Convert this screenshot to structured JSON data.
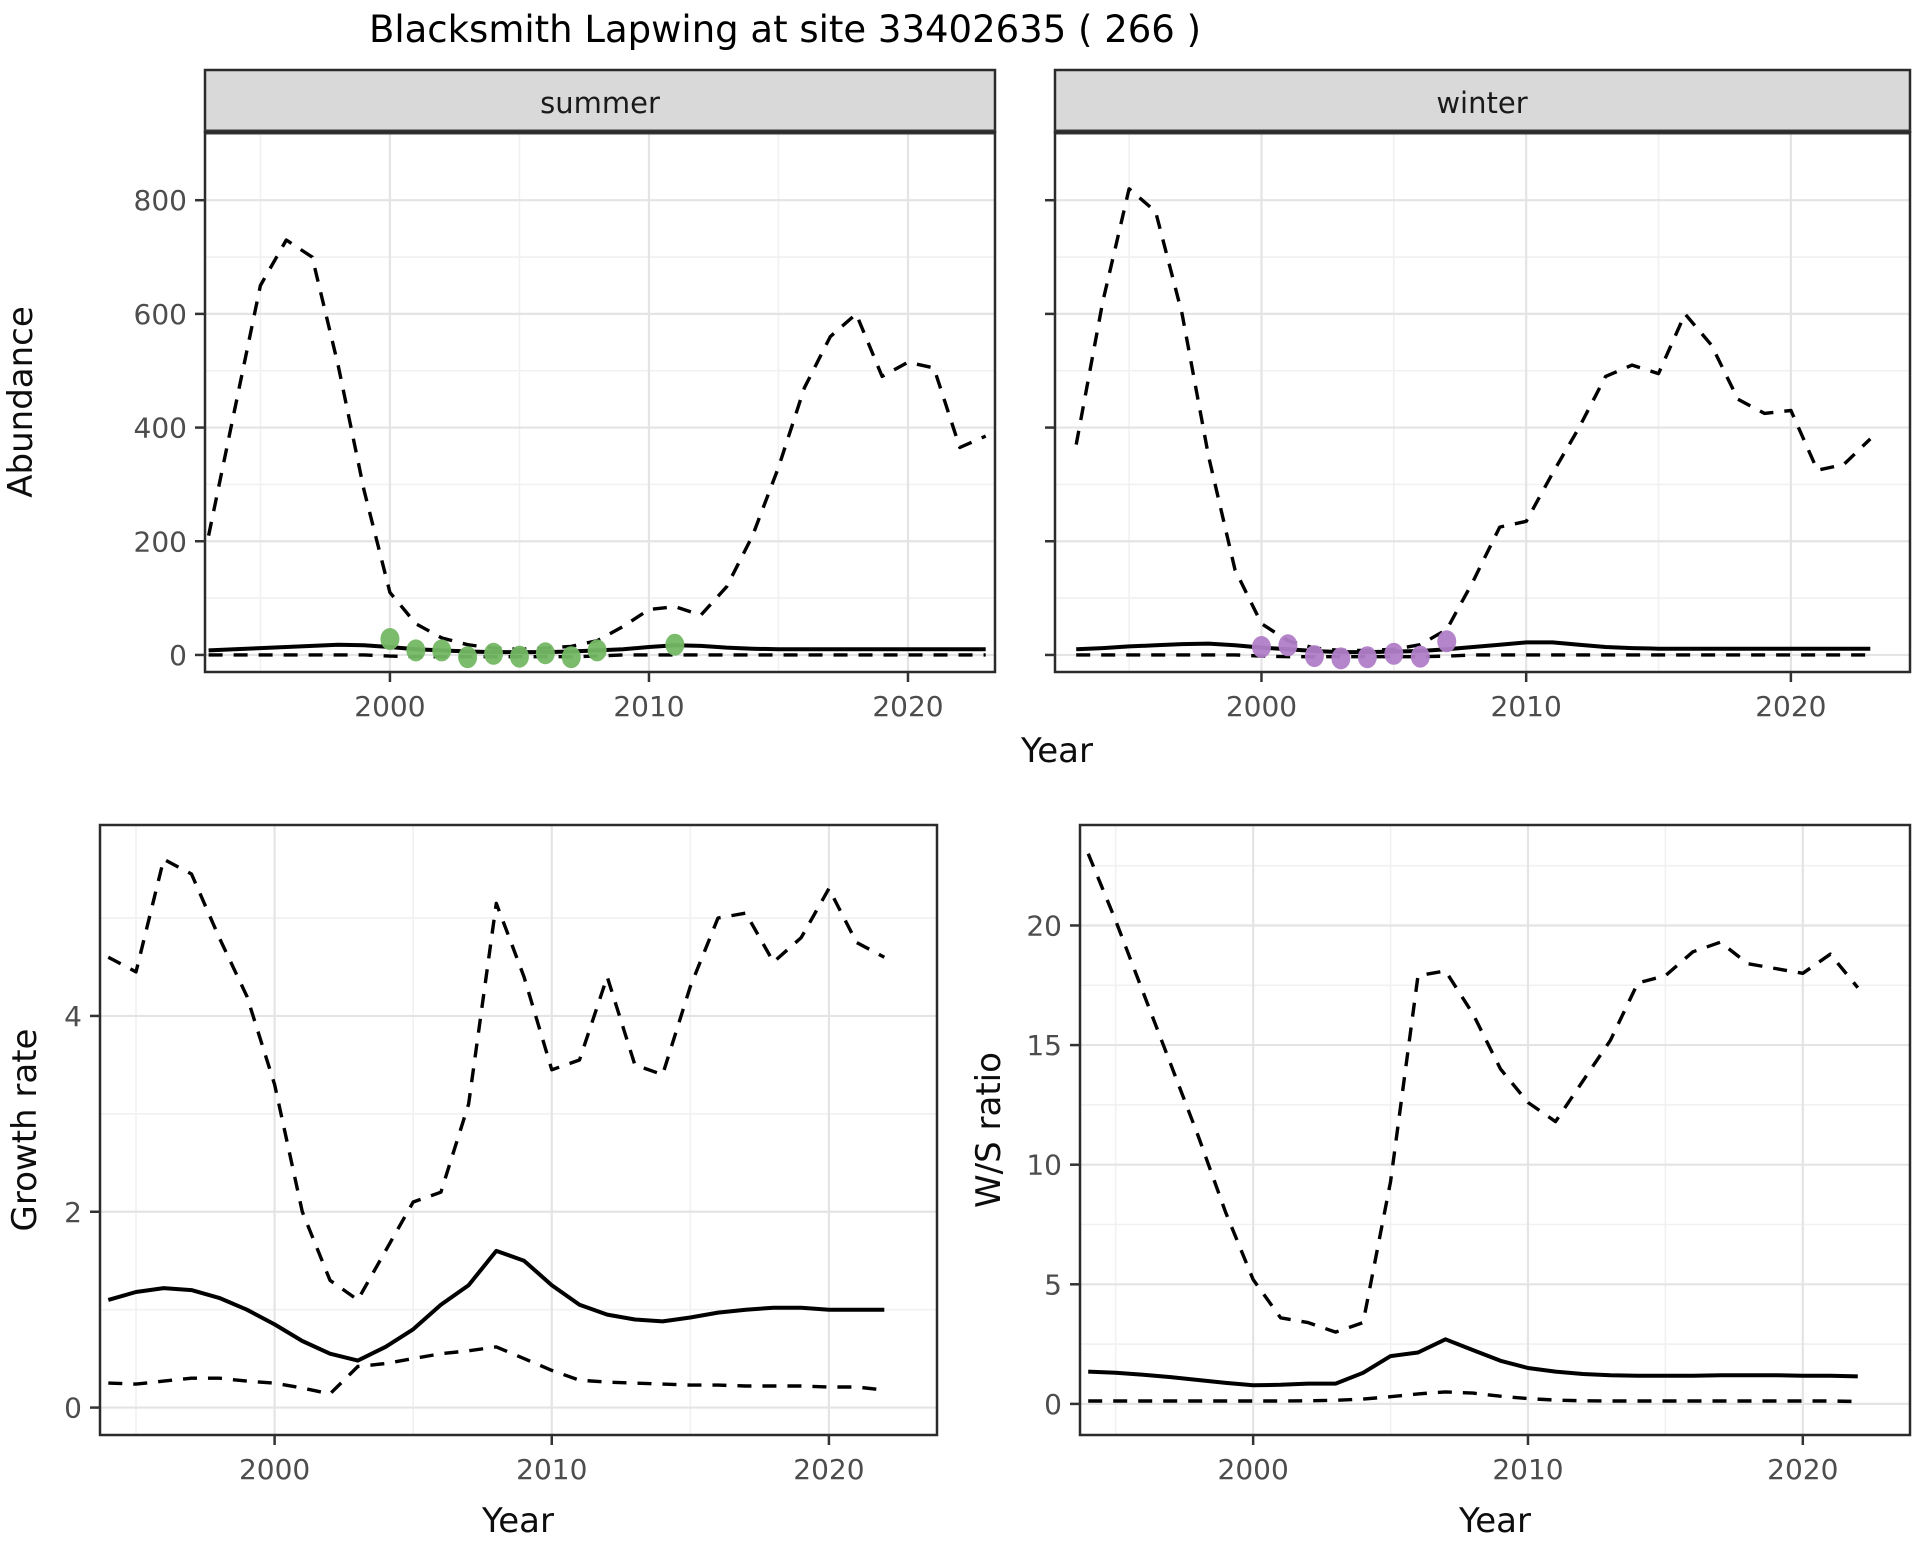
{
  "title": "Blacksmith Lapwing at site 33402635 ( 266 )",
  "colors": {
    "line": "#000000",
    "summer_point": "#74B864",
    "winter_point": "#B07EC7",
    "grid_major": "#E4E4E4",
    "grid_minor": "#F1F1F1",
    "strip_bg": "#D9D9D9",
    "panel_border": "#2B2B2B",
    "tick_mark": "#333333",
    "tick_text": "#4D4D4D"
  },
  "chart_data": [
    {
      "id": "abundance-summer",
      "type": "line",
      "strip": "summer",
      "xlabel": "Year",
      "ylabel": "Abundance",
      "xlim": [
        1992.86,
        2023.36
      ],
      "ylim": [
        -30,
        920
      ],
      "xticks": [
        2000,
        2010,
        2020
      ],
      "yticks": [
        0,
        200,
        400,
        600,
        800
      ],
      "xminor": [
        1995,
        2005,
        2015
      ],
      "yminor": [
        100,
        300,
        500,
        700
      ],
      "show_ytick_labels": true,
      "series": [
        {
          "name": "upper-ci",
          "style": "dashed",
          "x": [
            1993,
            1994,
            1995,
            1996,
            1997,
            1998,
            1999,
            2000,
            2001,
            2002,
            2003,
            2004,
            2005,
            2006,
            2007,
            2008,
            2009,
            2010,
            2011,
            2012,
            2013,
            2014,
            2015,
            2016,
            2017,
            2018,
            2019,
            2020,
            2021,
            2022,
            2023
          ],
          "y": [
            210,
            430,
            650,
            730,
            700,
            510,
            290,
            110,
            55,
            30,
            18,
            12,
            10,
            12,
            15,
            25,
            50,
            80,
            85,
            70,
            120,
            210,
            330,
            470,
            560,
            600,
            490,
            515,
            505,
            365,
            385
          ]
        },
        {
          "name": "mean",
          "style": "solid",
          "x": [
            1993,
            1994,
            1995,
            1996,
            1997,
            1998,
            1999,
            2000,
            2001,
            2002,
            2003,
            2004,
            2005,
            2006,
            2007,
            2008,
            2009,
            2010,
            2011,
            2012,
            2013,
            2014,
            2015,
            2016,
            2017,
            2018,
            2019,
            2020,
            2021,
            2022,
            2023
          ],
          "y": [
            8,
            10,
            12,
            14,
            16,
            18,
            17,
            14,
            10,
            8,
            6,
            5,
            5,
            5,
            6,
            8,
            10,
            14,
            17,
            16,
            13,
            11,
            10,
            10,
            10,
            10,
            10,
            10,
            10,
            10,
            10
          ]
        },
        {
          "name": "lower-ci",
          "style": "dashed",
          "x": [
            1993,
            1994,
            1995,
            1996,
            1997,
            1998,
            1999,
            2000,
            2001,
            2002,
            2003,
            2004,
            2005,
            2006,
            2007,
            2008,
            2009,
            2010,
            2011,
            2012,
            2013,
            2014,
            2015,
            2016,
            2017,
            2018,
            2019,
            2020,
            2021,
            2022,
            2023
          ],
          "y": [
            0,
            0,
            0,
            0,
            0,
            0,
            0,
            -2,
            -3,
            -3,
            -3,
            -3,
            -3,
            -3,
            -3,
            -2,
            0,
            0,
            0,
            0,
            0,
            0,
            0,
            0,
            0,
            0,
            0,
            0,
            0,
            0,
            0
          ]
        },
        {
          "name": "observed-points",
          "style": "points",
          "color_key": "summer_point",
          "x": [
            2000,
            2001,
            2002,
            2003,
            2004,
            2005,
            2006,
            2007,
            2008,
            2011
          ],
          "y": [
            28,
            8,
            8,
            -4,
            2,
            -3,
            3,
            -4,
            8,
            18
          ]
        }
      ]
    },
    {
      "id": "abundance-winter",
      "type": "line",
      "strip": "winter",
      "xlabel": "Year",
      "ylabel": "Abundance",
      "xlim": [
        1992.2,
        2024.5
      ],
      "ylim": [
        -30,
        920
      ],
      "xticks": [
        2000,
        2010,
        2020
      ],
      "yticks": [
        0,
        200,
        400,
        600,
        800
      ],
      "xminor": [
        1995,
        2005,
        2015
      ],
      "yminor": [
        100,
        300,
        500,
        700
      ],
      "show_ytick_labels": false,
      "series": [
        {
          "name": "upper-ci",
          "style": "dashed",
          "x": [
            1993,
            1994,
            1995,
            1996,
            1997,
            1998,
            1999,
            2000,
            2001,
            2002,
            2003,
            2004,
            2005,
            2006,
            2007,
            2008,
            2009,
            2010,
            2011,
            2012,
            2013,
            2014,
            2015,
            2016,
            2017,
            2018,
            2019,
            2020,
            2021,
            2022,
            2023
          ],
          "y": [
            370,
            620,
            820,
            780,
            600,
            350,
            150,
            55,
            25,
            12,
            8,
            8,
            10,
            18,
            45,
            130,
            225,
            235,
            320,
            400,
            490,
            510,
            495,
            600,
            545,
            450,
            425,
            430,
            325,
            335,
            380
          ]
        },
        {
          "name": "mean",
          "style": "solid",
          "x": [
            1993,
            1994,
            1995,
            1996,
            1997,
            1998,
            1999,
            2000,
            2001,
            2002,
            2003,
            2004,
            2005,
            2006,
            2007,
            2008,
            2009,
            2010,
            2011,
            2012,
            2013,
            2014,
            2015,
            2016,
            2017,
            2018,
            2019,
            2020,
            2021,
            2022,
            2023
          ],
          "y": [
            10,
            12,
            15,
            17,
            19,
            20,
            17,
            13,
            10,
            7,
            5,
            5,
            6,
            7,
            10,
            14,
            18,
            22,
            22,
            18,
            14,
            12,
            11,
            11,
            11,
            11,
            11,
            11,
            11,
            11,
            11
          ]
        },
        {
          "name": "lower-ci",
          "style": "dashed",
          "x": [
            1993,
            1994,
            1995,
            1996,
            1997,
            1998,
            1999,
            2000,
            2001,
            2002,
            2003,
            2004,
            2005,
            2006,
            2007,
            2008,
            2009,
            2010,
            2011,
            2012,
            2013,
            2014,
            2015,
            2016,
            2017,
            2018,
            2019,
            2020,
            2021,
            2022,
            2023
          ],
          "y": [
            0,
            0,
            0,
            0,
            0,
            0,
            0,
            -2,
            -3,
            -3,
            -3,
            -3,
            -3,
            -3,
            -2,
            0,
            0,
            0,
            0,
            0,
            0,
            0,
            0,
            0,
            0,
            0,
            0,
            0,
            0,
            0,
            0
          ]
        },
        {
          "name": "observed-points",
          "style": "points",
          "color_key": "winter_point",
          "x": [
            2000,
            2001,
            2002,
            2003,
            2004,
            2005,
            2006,
            2007
          ],
          "y": [
            14,
            17,
            -2,
            -6,
            -4,
            2,
            -3,
            24
          ]
        }
      ]
    },
    {
      "id": "growth-rate",
      "type": "line",
      "strip": null,
      "xlabel": "Year",
      "ylabel": "Growth rate",
      "xlim": [
        1993.7,
        2023.9
      ],
      "ylim": [
        -0.28,
        5.95
      ],
      "xticks": [
        2000,
        2010,
        2020
      ],
      "yticks": [
        0,
        2,
        4
      ],
      "xminor": [
        1995,
        2005,
        2015
      ],
      "yminor": [
        1,
        3,
        5
      ],
      "show_ytick_labels": true,
      "series": [
        {
          "name": "upper-ci",
          "style": "dashed",
          "x": [
            1994,
            1995,
            1996,
            1997,
            1998,
            1999,
            2000,
            2001,
            2002,
            2003,
            2004,
            2005,
            2006,
            2007,
            2008,
            2009,
            2010,
            2011,
            2012,
            2013,
            2014,
            2015,
            2016,
            2017,
            2018,
            2019,
            2020,
            2021,
            2022
          ],
          "y": [
            4.6,
            4.45,
            5.6,
            5.45,
            4.8,
            4.2,
            3.3,
            2.0,
            1.3,
            1.1,
            1.6,
            2.1,
            2.2,
            3.1,
            5.15,
            4.4,
            3.45,
            3.55,
            4.4,
            3.5,
            3.4,
            4.3,
            5.0,
            5.05,
            4.55,
            4.8,
            5.3,
            4.75,
            4.6
          ]
        },
        {
          "name": "mean",
          "style": "solid",
          "x": [
            1994,
            1995,
            1996,
            1997,
            1998,
            1999,
            2000,
            2001,
            2002,
            2003,
            2004,
            2005,
            2006,
            2007,
            2008,
            2009,
            2010,
            2011,
            2012,
            2013,
            2014,
            2015,
            2016,
            2017,
            2018,
            2019,
            2020,
            2021,
            2022
          ],
          "y": [
            1.1,
            1.18,
            1.22,
            1.2,
            1.12,
            1.0,
            0.85,
            0.68,
            0.55,
            0.48,
            0.62,
            0.8,
            1.05,
            1.25,
            1.6,
            1.5,
            1.25,
            1.05,
            0.95,
            0.9,
            0.88,
            0.92,
            0.97,
            1.0,
            1.02,
            1.02,
            1.0,
            1.0,
            1.0
          ]
        },
        {
          "name": "lower-ci",
          "style": "dashed",
          "x": [
            1994,
            1995,
            1996,
            1997,
            1998,
            1999,
            2000,
            2001,
            2002,
            2003,
            2004,
            2005,
            2006,
            2007,
            2008,
            2009,
            2010,
            2011,
            2012,
            2013,
            2014,
            2015,
            2016,
            2017,
            2018,
            2019,
            2020,
            2021,
            2022
          ],
          "y": [
            0.25,
            0.24,
            0.27,
            0.3,
            0.3,
            0.27,
            0.25,
            0.2,
            0.14,
            0.42,
            0.45,
            0.5,
            0.55,
            0.58,
            0.62,
            0.5,
            0.38,
            0.28,
            0.26,
            0.25,
            0.24,
            0.23,
            0.23,
            0.22,
            0.22,
            0.22,
            0.21,
            0.21,
            0.18
          ]
        }
      ]
    },
    {
      "id": "ws-ratio",
      "type": "line",
      "strip": null,
      "xlabel": "Year",
      "ylabel": "W/S ratio",
      "xlim": [
        1993.7,
        2023.9
      ],
      "ylim": [
        -1.3,
        24.2
      ],
      "xticks": [
        2000,
        2010,
        2020
      ],
      "yticks": [
        0,
        5,
        10,
        15,
        20
      ],
      "xminor": [
        1995,
        2005,
        2015
      ],
      "yminor": [
        2.5,
        7.5,
        12.5,
        17.5,
        22.5
      ],
      "show_ytick_labels": true,
      "series": [
        {
          "name": "upper-ci",
          "style": "dashed",
          "x": [
            1994,
            1995,
            1996,
            1997,
            1998,
            1999,
            2000,
            2001,
            2002,
            2003,
            2004,
            2005,
            2006,
            2007,
            2008,
            2009,
            2010,
            2011,
            2012,
            2013,
            2014,
            2015,
            2016,
            2017,
            2018,
            2019,
            2020,
            2021,
            2022
          ],
          "y": [
            23.0,
            20.2,
            17.2,
            14.2,
            11.2,
            8.0,
            5.2,
            3.6,
            3.4,
            3.0,
            3.4,
            9.3,
            17.9,
            18.1,
            16.3,
            14.0,
            12.6,
            11.8,
            13.5,
            15.2,
            17.6,
            17.9,
            18.9,
            19.3,
            18.4,
            18.2,
            18.0,
            18.8,
            17.4
          ]
        },
        {
          "name": "mean",
          "style": "solid",
          "x": [
            1994,
            1995,
            1996,
            1997,
            1998,
            1999,
            2000,
            2001,
            2002,
            2003,
            2004,
            2005,
            2006,
            2007,
            2008,
            2009,
            2010,
            2011,
            2012,
            2013,
            2014,
            2015,
            2016,
            2017,
            2018,
            2019,
            2020,
            2021,
            2022
          ],
          "y": [
            1.35,
            1.3,
            1.22,
            1.12,
            1.0,
            0.88,
            0.78,
            0.8,
            0.85,
            0.85,
            1.3,
            2.0,
            2.15,
            2.7,
            2.25,
            1.8,
            1.5,
            1.35,
            1.25,
            1.2,
            1.18,
            1.18,
            1.18,
            1.2,
            1.2,
            1.2,
            1.18,
            1.18,
            1.15
          ]
        },
        {
          "name": "lower-ci",
          "style": "dashed",
          "x": [
            1994,
            1995,
            1996,
            1997,
            1998,
            1999,
            2000,
            2001,
            2002,
            2003,
            2004,
            2005,
            2006,
            2007,
            2008,
            2009,
            2010,
            2011,
            2012,
            2013,
            2014,
            2015,
            2016,
            2017,
            2018,
            2019,
            2020,
            2021,
            2022
          ],
          "y": [
            0.12,
            0.12,
            0.12,
            0.12,
            0.12,
            0.12,
            0.12,
            0.12,
            0.13,
            0.15,
            0.2,
            0.3,
            0.42,
            0.5,
            0.45,
            0.32,
            0.22,
            0.16,
            0.13,
            0.12,
            0.12,
            0.12,
            0.12,
            0.12,
            0.12,
            0.12,
            0.12,
            0.12,
            0.1
          ]
        }
      ]
    }
  ]
}
